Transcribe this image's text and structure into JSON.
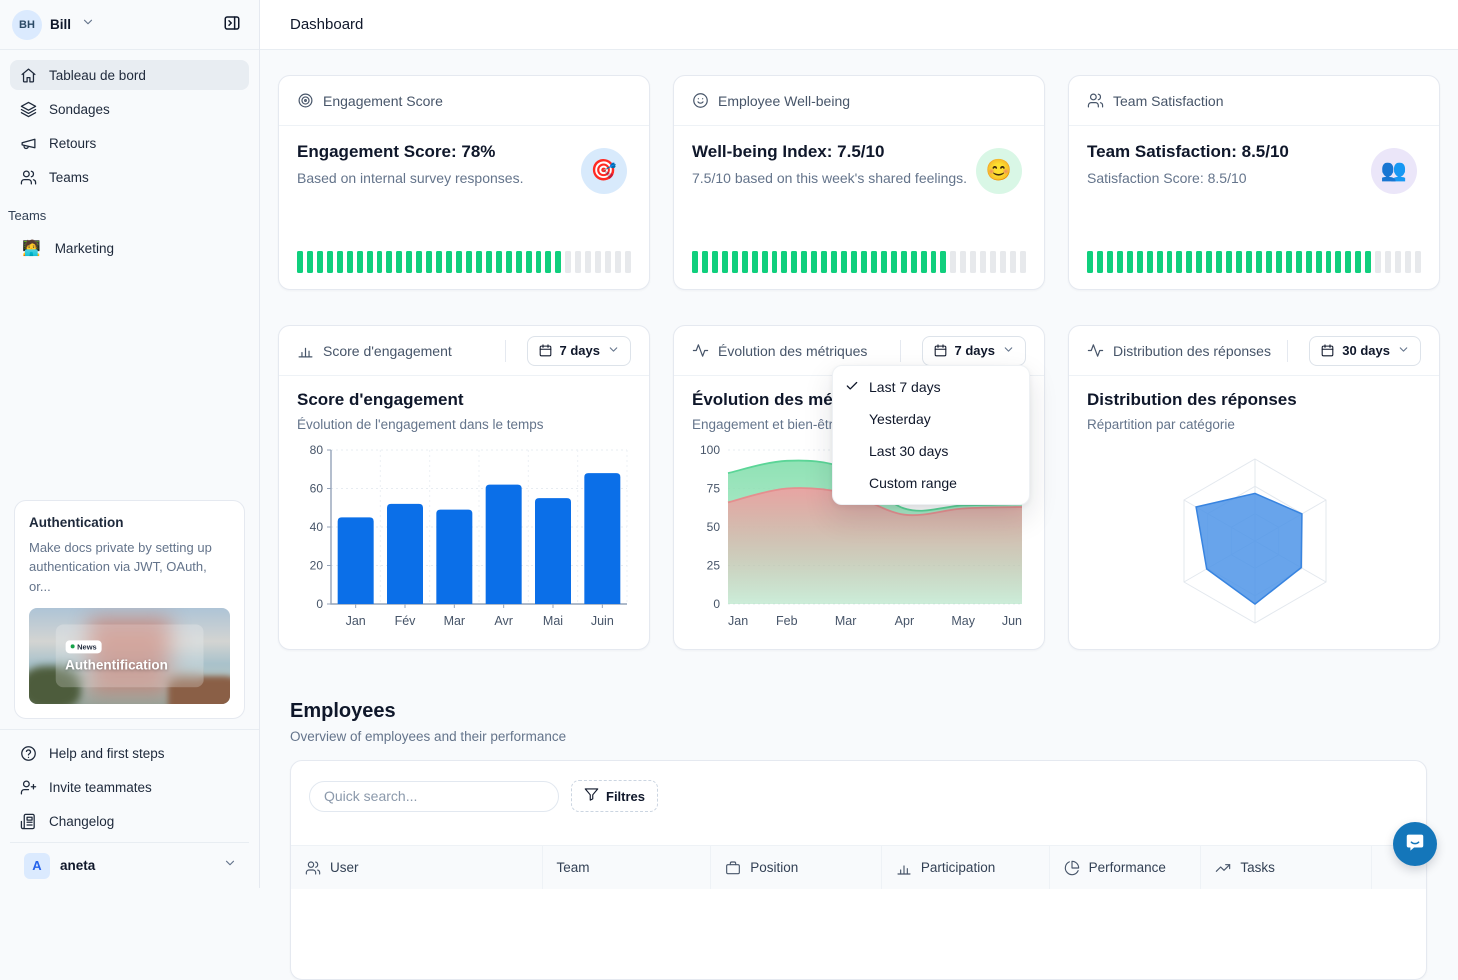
{
  "colors": {
    "accent_blue": "#0b6fe8",
    "progress_green": "#10cf7d",
    "segment_gray": "#e7e9ec",
    "area_green": "#8ae0b1",
    "area_green_line": "#5bd597",
    "area_pink": "#eca1a1",
    "area_pink_line": "#e48f8f",
    "radar_fill": "#4d94e8",
    "radar_stroke": "#3884e0",
    "chat_blue": "#1476ba"
  },
  "sidebar": {
    "user": {
      "initials": "BH",
      "name": "Bill"
    },
    "nav": [
      {
        "label": "Tableau de bord",
        "icon": "home",
        "active": true
      },
      {
        "label": "Sondages",
        "icon": "layers",
        "active": false
      },
      {
        "label": "Retours",
        "icon": "megaphone",
        "active": false
      },
      {
        "label": "Teams",
        "icon": "users",
        "active": false
      }
    ],
    "teams_section_label": "Teams",
    "teams": [
      {
        "label": "Marketing",
        "emoji": "🧑‍💻"
      }
    ],
    "promo_card": {
      "title": "Authentication",
      "description": "Make docs private by setting up authentication via JWT, OAuth, or...",
      "badge": "News",
      "image_caption": "Authentification"
    },
    "footer_nav": [
      {
        "label": "Help and first steps",
        "icon": "help"
      },
      {
        "label": "Invite teammates",
        "icon": "user-plus"
      },
      {
        "label": "Changelog",
        "icon": "changelog"
      }
    ],
    "workspace": {
      "initial": "A",
      "name": "aneta"
    }
  },
  "header": {
    "title": "Dashboard"
  },
  "stat_cards": [
    {
      "header": "Engagement Score",
      "header_icon": "target",
      "title": "Engagement Score: 78%",
      "subtitle": "Based on internal survey responses.",
      "emoji": "🎯",
      "emoji_bg": "#d8eafc",
      "progress_pct": 78
    },
    {
      "header": "Employee Well-being",
      "header_icon": "smile",
      "title": "Well-being Index: 7.5/10",
      "subtitle": "7.5/10 based on this week's shared feelings.",
      "emoji": "😊",
      "emoji_bg": "#d9f7e6",
      "progress_pct": 75
    },
    {
      "header": "Team Satisfaction",
      "header_icon": "users",
      "title": "Team Satisfaction: 8.5/10",
      "subtitle": "Satisfaction Score: 8.5/10",
      "emoji": "👥",
      "emoji_bg": "#ebe6f9",
      "progress_pct": 85
    }
  ],
  "chart_cards": [
    {
      "header": "Score d'engagement",
      "header_icon": "bar-chart",
      "range_label": "7 days",
      "title": "Score d'engagement",
      "subtitle": "Évolution de l'engagement dans le temps"
    },
    {
      "header": "Évolution des métriques",
      "header_icon": "activity",
      "range_label": "7 days",
      "title": "Évolution des métriques",
      "subtitle": "Engagement et bien-être"
    },
    {
      "header": "Distribution des réponses",
      "header_icon": "activity",
      "range_label": "30 days",
      "title": "Distribution des réponses",
      "subtitle": "Répartition par catégorie"
    }
  ],
  "dropdown_menu": {
    "items": [
      {
        "label": "Last 7 days",
        "checked": true
      },
      {
        "label": "Yesterday",
        "checked": false
      },
      {
        "label": "Last 30 days",
        "checked": false
      },
      {
        "label": "Custom range",
        "checked": false
      }
    ]
  },
  "chart_data": [
    {
      "type": "bar",
      "title": "Score d'engagement",
      "categories": [
        "Jan",
        "Fév",
        "Mar",
        "Avr",
        "Mai",
        "Juin"
      ],
      "values": [
        45,
        52,
        49,
        62,
        55,
        68
      ],
      "ylim": [
        0,
        80
      ],
      "yticks": [
        0,
        20,
        40,
        60,
        80
      ],
      "grid": true,
      "bar_color": "#0b6fe8"
    },
    {
      "type": "area",
      "title": "Évolution des métriques",
      "x": [
        "Jan",
        "Feb",
        "Mar",
        "Apr",
        "May",
        "Jun"
      ],
      "series": [
        {
          "name": "Engagement",
          "color": "green",
          "values": [
            85,
            93,
            88,
            62,
            64,
            65
          ]
        },
        {
          "name": "Bien-être",
          "color": "pink",
          "values": [
            66,
            75,
            72,
            58,
            62,
            63
          ]
        }
      ],
      "ylim": [
        0,
        100
      ],
      "yticks": [
        0,
        25,
        50,
        75,
        100
      ],
      "grid": true
    },
    {
      "type": "radar",
      "title": "Distribution des réponses",
      "axes": 6,
      "axis_labels": [],
      "values": [
        58,
        66,
        65,
        77,
        68,
        83
      ],
      "max": 100,
      "rings": 3
    }
  ],
  "employees": {
    "title": "Employees",
    "subtitle": "Overview of employees and their performance",
    "search_placeholder": "Quick search...",
    "filter_label": "Filtres",
    "columns": [
      {
        "label": "User",
        "icon": "users"
      },
      {
        "label": "Team",
        "icon": ""
      },
      {
        "label": "Position",
        "icon": "briefcase"
      },
      {
        "label": "Participation",
        "icon": "bar-chart"
      },
      {
        "label": "Performance",
        "icon": "pie-chart"
      },
      {
        "label": "Tasks",
        "icon": "trend-up"
      }
    ]
  }
}
